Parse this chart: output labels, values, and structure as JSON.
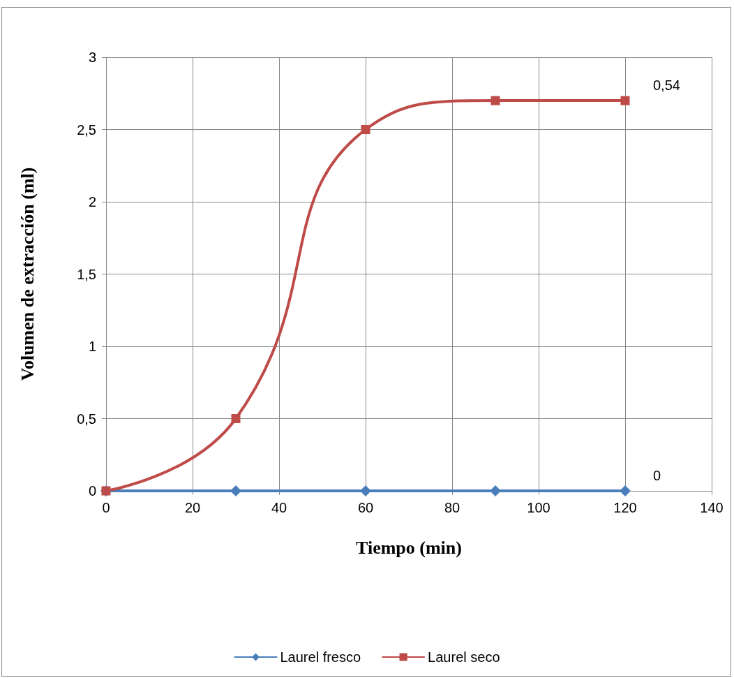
{
  "chart_data": {
    "type": "line",
    "xlabel": "Tiempo (min)",
    "ylabel": "Volumen de extracción (ml)",
    "xlim": [
      0,
      140
    ],
    "xticks": [
      0,
      20,
      40,
      60,
      80,
      100,
      120,
      140
    ],
    "ylim": [
      0,
      3
    ],
    "yticks": [
      0,
      {
        "value": 0.5,
        "label": "0,5"
      },
      1,
      {
        "value": 1.5,
        "label": "1,5"
      },
      2,
      {
        "value": 2.5,
        "label": "2,5"
      },
      3
    ],
    "x": [
      0,
      30,
      60,
      90,
      120
    ],
    "series": [
      {
        "name": "Laurel fresco",
        "color": "#4a7ebb",
        "marker": "diamond",
        "values": [
          0,
          0,
          0,
          0,
          0
        ]
      },
      {
        "name": "Laurel seco",
        "color": "#be4b48",
        "marker": "square",
        "values": [
          0,
          0.5,
          2.5,
          2.7,
          2.7
        ]
      }
    ],
    "annotations": [
      {
        "text": "0,54",
        "x": 120,
        "y": 2.7
      },
      {
        "text": "0",
        "x": 120,
        "y": 0
      }
    ],
    "grid": true,
    "legend": "bottom",
    "line_style": "solid"
  }
}
